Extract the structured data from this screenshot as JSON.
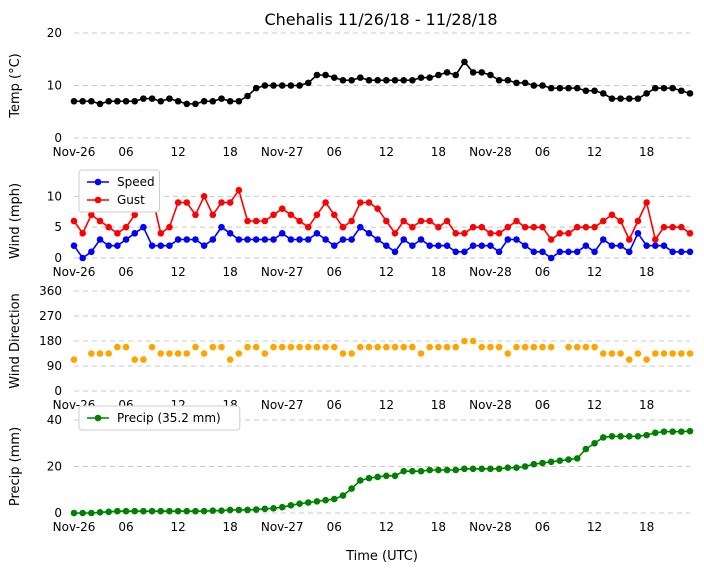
{
  "chart_data": [
    {
      "type": "line",
      "panel": "temp",
      "title": "Chehalis 11/26/18 - 11/28/18",
      "ylabel": "Temp ($^\\circ$C)",
      "ylabel_display": "Temp (°C)",
      "ylim": [
        0,
        20
      ],
      "yticks": [
        0,
        10,
        20
      ],
      "grid": "y-dashed",
      "xtick_labels": [
        "Nov-26",
        "06",
        "12",
        "18",
        "Nov-27",
        "06",
        "12",
        "18",
        "Nov-28",
        "06",
        "12",
        "18"
      ],
      "x_hours": "0..71, hourly",
      "series": [
        {
          "name": "Temp",
          "color": "#000000",
          "values": [
            7,
            7,
            7,
            6.5,
            7,
            7,
            7,
            7,
            7.5,
            7.5,
            7,
            7.5,
            7,
            6.5,
            6.5,
            7,
            7,
            7.5,
            7,
            7,
            8,
            9.5,
            10,
            10,
            10,
            10,
            10,
            10.5,
            12,
            12,
            11.5,
            11,
            11,
            11.5,
            11,
            11,
            11,
            11,
            11,
            11,
            11.5,
            11.5,
            12,
            12.5,
            12,
            14.5,
            12.5,
            12.5,
            12,
            11,
            11,
            10.5,
            10.5,
            10,
            10,
            9.5,
            9.5,
            9.5,
            9.5,
            9,
            9,
            8.5,
            7.5,
            7.5,
            7.5,
            7.5,
            8.5,
            9.5,
            9.5,
            9.5,
            9,
            8.5
          ]
        }
      ]
    },
    {
      "type": "line",
      "panel": "wind",
      "ylabel": "Wind (mph)",
      "ylim": [
        0,
        12
      ],
      "yticks": [
        0,
        5,
        10
      ],
      "grid": "y-dashed",
      "legend": "top-left",
      "xtick_labels": [
        "Nov-26",
        "06",
        "12",
        "18",
        "Nov-27",
        "06",
        "12",
        "18",
        "Nov-28",
        "06",
        "12",
        "18"
      ],
      "series": [
        {
          "name": "Speed",
          "color": "#0000ff",
          "values": [
            2,
            0,
            1,
            3,
            2,
            2,
            3,
            4,
            5,
            2,
            2,
            2,
            3,
            3,
            3,
            2,
            3,
            5,
            4,
            3,
            3,
            3,
            3,
            3,
            4,
            3,
            3,
            3,
            4,
            3,
            2,
            3,
            3,
            5,
            4,
            3,
            2,
            1,
            3,
            2,
            3,
            2,
            2,
            2,
            1,
            1,
            2,
            2,
            2,
            1,
            3,
            3,
            2,
            1,
            1,
            0,
            1,
            1,
            1,
            2,
            1,
            3,
            2,
            2,
            1,
            4,
            2,
            2,
            2,
            1,
            1,
            1
          ]
        },
        {
          "name": "Gust",
          "color": "#ff0000",
          "values": [
            6,
            4,
            7,
            6,
            5,
            4,
            5,
            7,
            10,
            10,
            4,
            5,
            9,
            9,
            7,
            10,
            7,
            9,
            9,
            11,
            6,
            6,
            6,
            7,
            8,
            7,
            6,
            5,
            7,
            9,
            7,
            5,
            6,
            9,
            9,
            8,
            6,
            4,
            6,
            5,
            6,
            6,
            5,
            6,
            4,
            4,
            5,
            5,
            4,
            4,
            5,
            6,
            5,
            5,
            5,
            3,
            4,
            4,
            5,
            5,
            5,
            6,
            7,
            6,
            3,
            6,
            9,
            3,
            5,
            5,
            5,
            4
          ]
        }
      ]
    },
    {
      "type": "scatter",
      "panel": "direction",
      "ylabel": "Wind Direction",
      "ylim": [
        0,
        360
      ],
      "yticks": [
        0,
        90,
        180,
        270,
        360
      ],
      "grid": "y-dashed",
      "xtick_labels": [
        "Nov-26",
        "06",
        "12",
        "18",
        "Nov-27",
        "06",
        "12",
        "18",
        "Nov-28",
        "06",
        "12",
        "18"
      ],
      "series": [
        {
          "name": "Direction",
          "color": "#ffa500",
          "values": [
            113,
            null,
            135,
            135,
            135,
            158,
            158,
            113,
            113,
            158,
            135,
            135,
            135,
            135,
            158,
            135,
            158,
            158,
            113,
            135,
            158,
            158,
            135,
            158,
            158,
            158,
            158,
            158,
            158,
            158,
            158,
            135,
            135,
            158,
            158,
            158,
            158,
            158,
            158,
            158,
            135,
            158,
            158,
            158,
            158,
            180,
            180,
            158,
            158,
            158,
            135,
            158,
            158,
            158,
            158,
            158,
            null,
            158,
            158,
            158,
            158,
            135,
            135,
            135,
            113,
            135,
            113,
            135,
            135,
            135,
            135,
            135
          ]
        }
      ]
    },
    {
      "type": "line",
      "panel": "precip",
      "ylabel": "Precip (mm)",
      "xlabel": "Time (UTC)",
      "ylim": [
        0,
        40
      ],
      "yticks": [
        0,
        20,
        40
      ],
      "grid": "y-dashed",
      "legend": "top-left",
      "xtick_labels": [
        "Nov-26",
        "06",
        "12",
        "18",
        "Nov-27",
        "06",
        "12",
        "18",
        "Nov-28",
        "06",
        "12",
        "18"
      ],
      "series": [
        {
          "name": "Precip (35.2 mm)",
          "color": "#008000",
          "values": [
            0,
            0,
            0,
            0.3,
            0.5,
            0.8,
            0.8,
            0.8,
            0.8,
            0.8,
            0.8,
            0.8,
            0.8,
            0.8,
            0.8,
            0.8,
            1,
            1,
            1.3,
            1.3,
            1.3,
            1.5,
            1.8,
            2,
            2.5,
            3.3,
            4,
            4.5,
            5,
            5.5,
            6,
            7.5,
            10.5,
            14,
            15,
            15.5,
            16,
            16,
            18,
            18,
            18,
            18.5,
            18.5,
            18.5,
            18.5,
            19,
            19,
            19,
            19,
            19,
            19.5,
            19.5,
            20,
            21,
            21.5,
            22,
            22.5,
            23,
            23.5,
            27.5,
            30,
            32.5,
            33,
            33,
            33,
            33,
            33.5,
            34.5,
            35,
            35,
            35,
            35.2
          ]
        }
      ]
    }
  ]
}
